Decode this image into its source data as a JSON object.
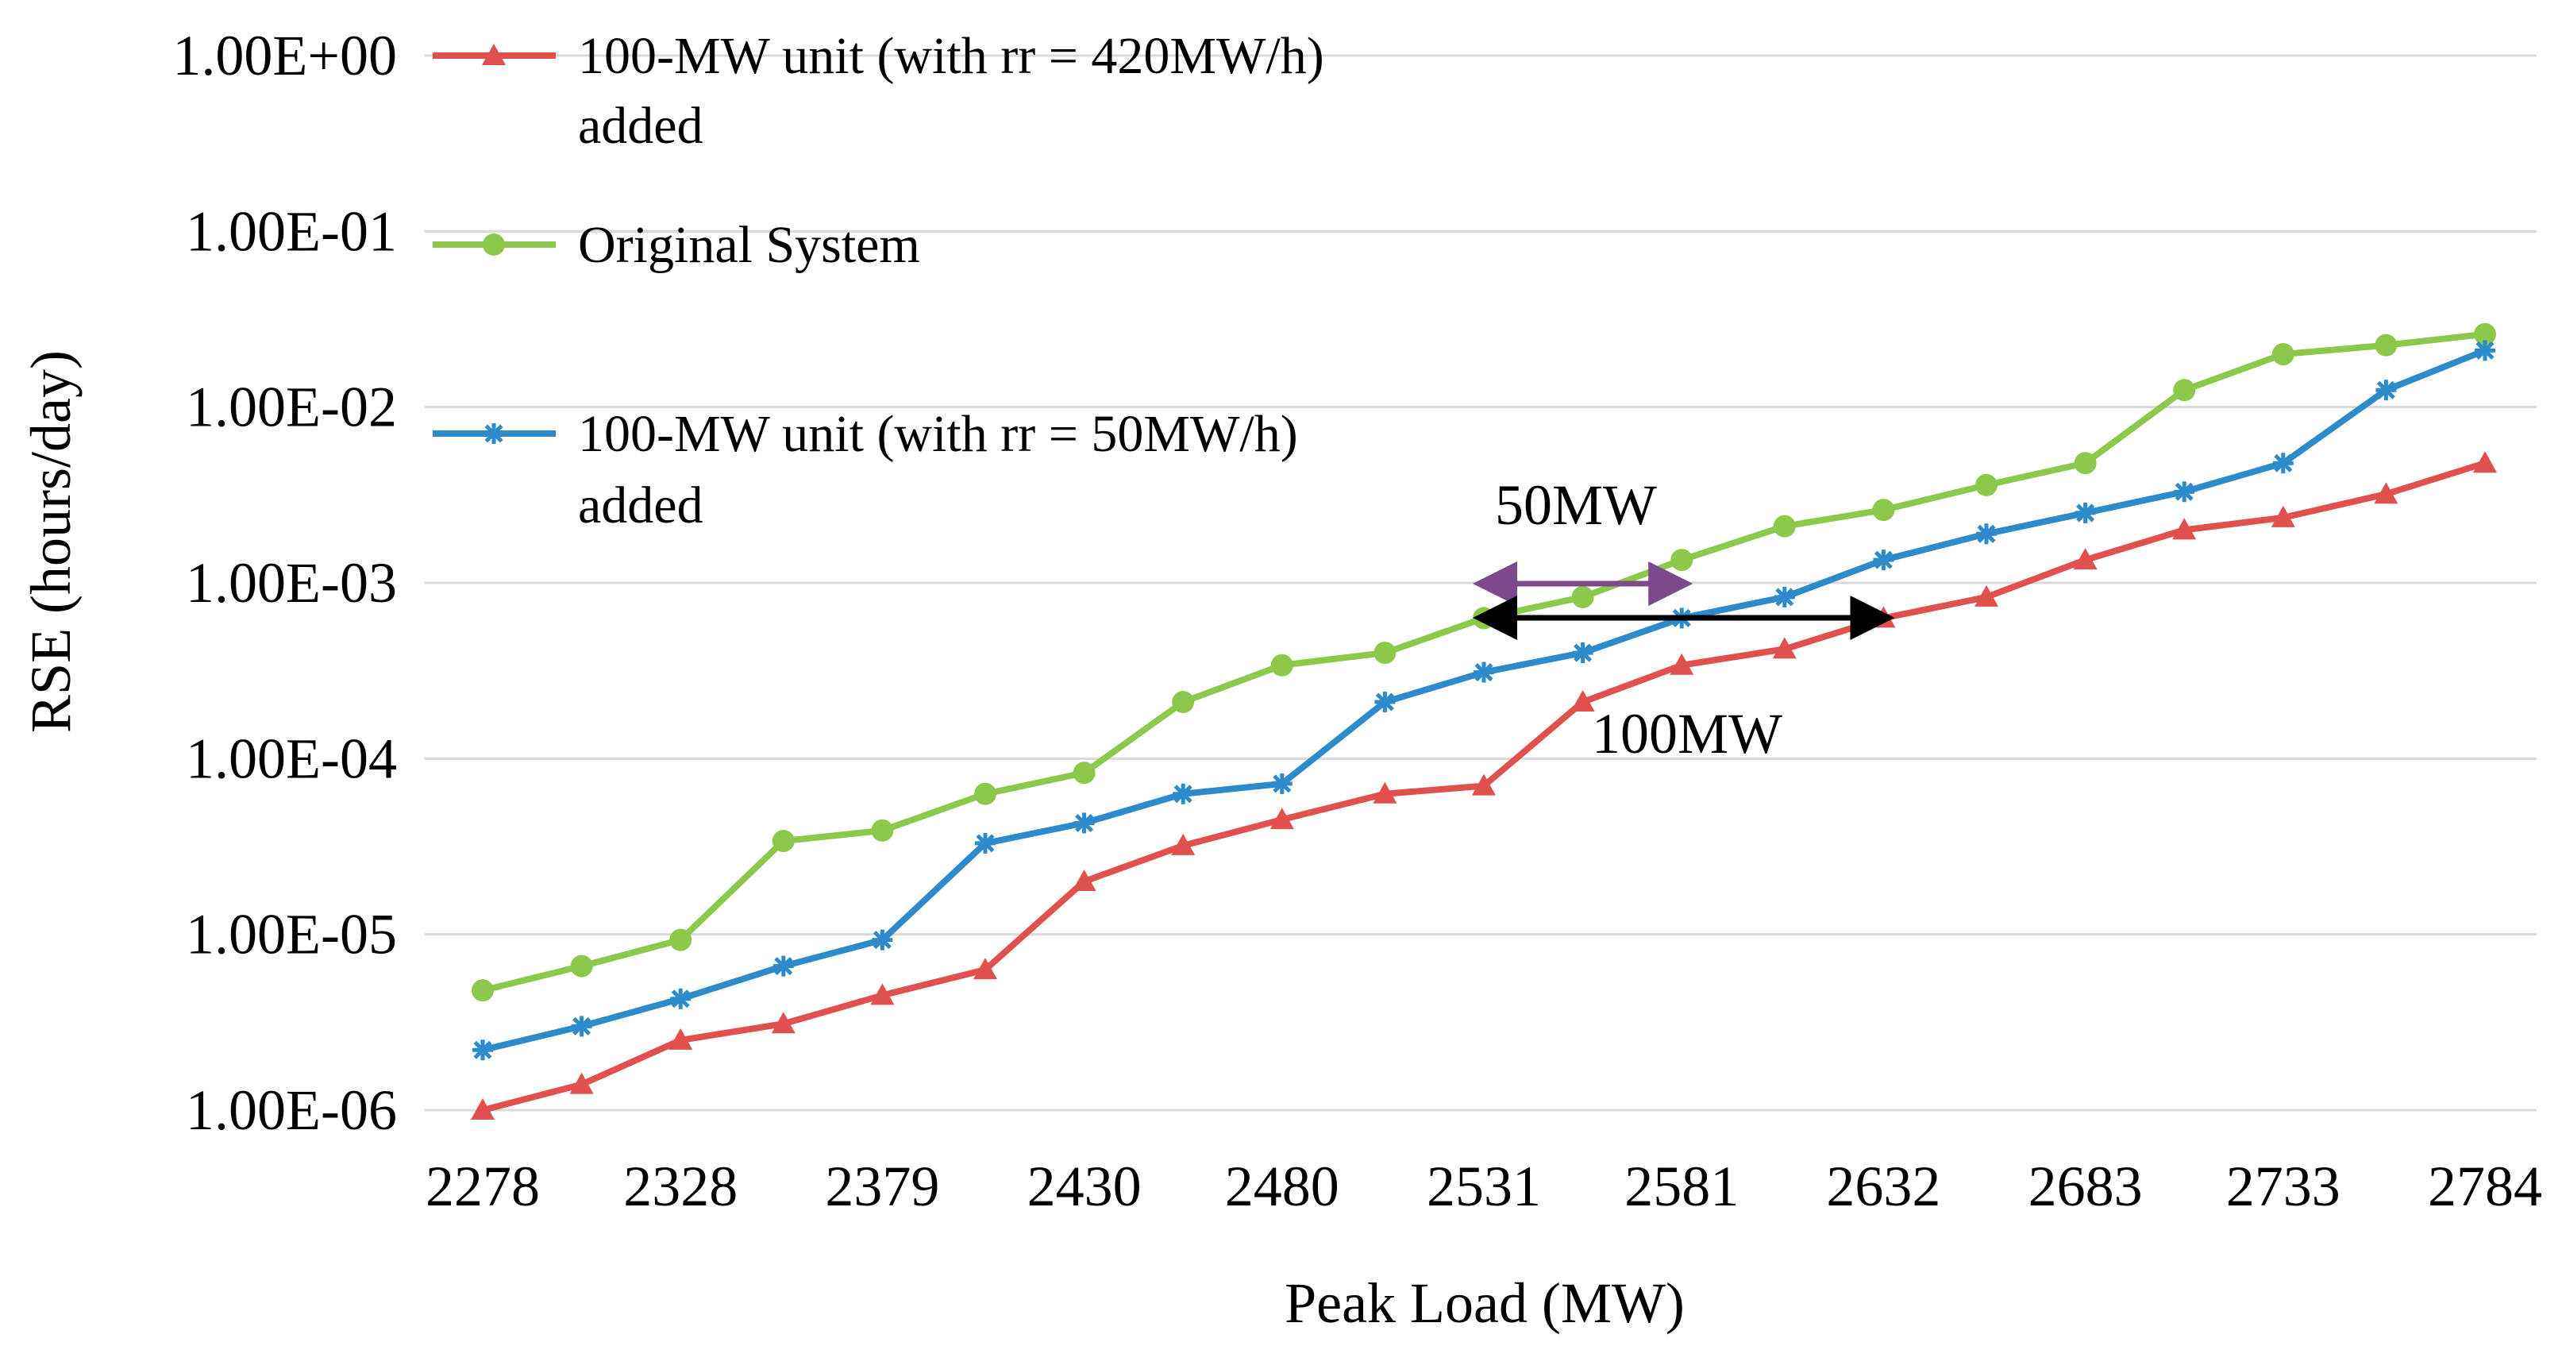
{
  "chart_data": {
    "type": "line",
    "title": "",
    "xlabel": "Peak Load (MW)",
    "ylabel": "RSE (hours/day)",
    "yscale": "log",
    "ylim": [
      1e-06,
      1
    ],
    "y_tick_labels": [
      "1.00E+00",
      "1.00E-01",
      "1.00E-02",
      "1.00E-03",
      "1.00E-04",
      "1.00E-05",
      "1.00E-06"
    ],
    "y_tick_values": [
      1,
      0.1,
      0.01,
      0.001,
      0.0001,
      1e-05,
      1e-06
    ],
    "x_tick_labels": [
      "2278",
      "2328",
      "2379",
      "2430",
      "2480",
      "2531",
      "2581",
      "2632",
      "2683",
      "2733",
      "2784"
    ],
    "x": [
      2278,
      2303,
      2328,
      2354,
      2379,
      2405,
      2430,
      2455,
      2480,
      2506,
      2531,
      2556,
      2581,
      2607,
      2632,
      2658,
      2683,
      2708,
      2733,
      2759,
      2784
    ],
    "series": [
      {
        "name": "100-MW unit (with rr = 420MW/h) added",
        "legend_lines": [
          "100-MW unit (with rr = 420MW/h)",
          "added"
        ],
        "color": "#e0504d",
        "marker": "triangle",
        "values": [
          1e-06,
          1.4e-06,
          2.5e-06,
          3.1e-06,
          4.5e-06,
          6.3e-06,
          2e-05,
          3.2e-05,
          4.5e-05,
          6.3e-05,
          7e-05,
          0.00021,
          0.00034,
          0.00042,
          0.00063,
          0.00083,
          0.00135,
          0.002,
          0.00235,
          0.0032,
          0.0048
        ]
      },
      {
        "name": "Original System",
        "legend_lines": [
          "Original System"
        ],
        "color": "#8cc84a",
        "marker": "circle",
        "values": [
          4.8e-06,
          6.6e-06,
          9.3e-06,
          3.4e-05,
          3.9e-05,
          6.3e-05,
          8.3e-05,
          0.00021,
          0.00034,
          0.0004,
          0.00063,
          0.00083,
          0.00135,
          0.0021,
          0.0026,
          0.0036,
          0.0048,
          0.0125,
          0.02,
          0.0225,
          0.026
        ]
      },
      {
        "name": "100-MW unit (with rr = 50MW/h) added",
        "legend_lines": [
          "100-MW unit (with rr = 50MW/h)",
          "added"
        ],
        "color": "#2e8bcb",
        "marker": "star",
        "values": [
          2.2e-06,
          3e-06,
          4.3e-06,
          6.6e-06,
          9.3e-06,
          3.3e-05,
          4.3e-05,
          6.3e-05,
          7.2e-05,
          0.00021,
          0.00031,
          0.0004,
          0.00063,
          0.00083,
          0.00135,
          0.0019,
          0.0025,
          0.0033,
          0.0048,
          0.0125,
          0.021
        ]
      }
    ],
    "annotations": [
      {
        "text": "50MW",
        "from_x": 2531,
        "to_x": 2581,
        "at_y": 0.001,
        "color": "#7b4a8c"
      },
      {
        "text": "100MW",
        "from_x": 2531,
        "to_x": 2632,
        "at_y": 0.00063,
        "color": "#000000"
      }
    ],
    "legend_position": "top-left",
    "grid": true
  }
}
